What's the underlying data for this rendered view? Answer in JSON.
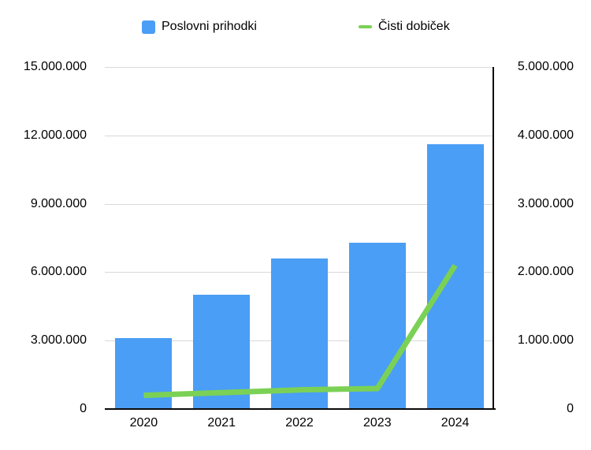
{
  "legend": {
    "items": [
      {
        "label": "Poslovni prihodki",
        "swatch": "square"
      },
      {
        "label": "Čisti dobiček",
        "swatch": "line"
      }
    ]
  },
  "colors": {
    "bar_blue": "#4A9EF5",
    "line_green": "#7BD155",
    "gridline": "#D9D9D9",
    "axis_line": "#0A0A0A",
    "text": "#000000",
    "background": "#FFFFFF"
  },
  "chart_data": {
    "type": "bar",
    "subtype": "combo-bar-line-dual-axis",
    "title": "",
    "xlabel": "",
    "ylabel": "",
    "grid": true,
    "legend_position": "top",
    "categories": [
      "2020",
      "2021",
      "2022",
      "2023",
      "2024"
    ],
    "series": [
      {
        "name": "Poslovni prihodki",
        "type": "bar",
        "axis": "left",
        "color": "#4A9EF5",
        "values": [
          3100000,
          5000000,
          6600000,
          7300000,
          11600000
        ]
      },
      {
        "name": "Čisti dobiček",
        "type": "line",
        "axis": "right",
        "color": "#7BD155",
        "values": [
          200000,
          240000,
          280000,
          300000,
          2100000
        ]
      }
    ],
    "left_axis": {
      "min": 0,
      "max": 15000000,
      "tick_labels": [
        "15.000.000",
        "12.000.000",
        "9.000.000",
        "6.000.000",
        "3.000.000",
        "0"
      ]
    },
    "right_axis": {
      "min": 0,
      "max": 5000000,
      "tick_labels": [
        "5.000.000",
        "4.000.000",
        "3.000.000",
        "2.000.000",
        "1.000.000",
        "0"
      ]
    }
  }
}
